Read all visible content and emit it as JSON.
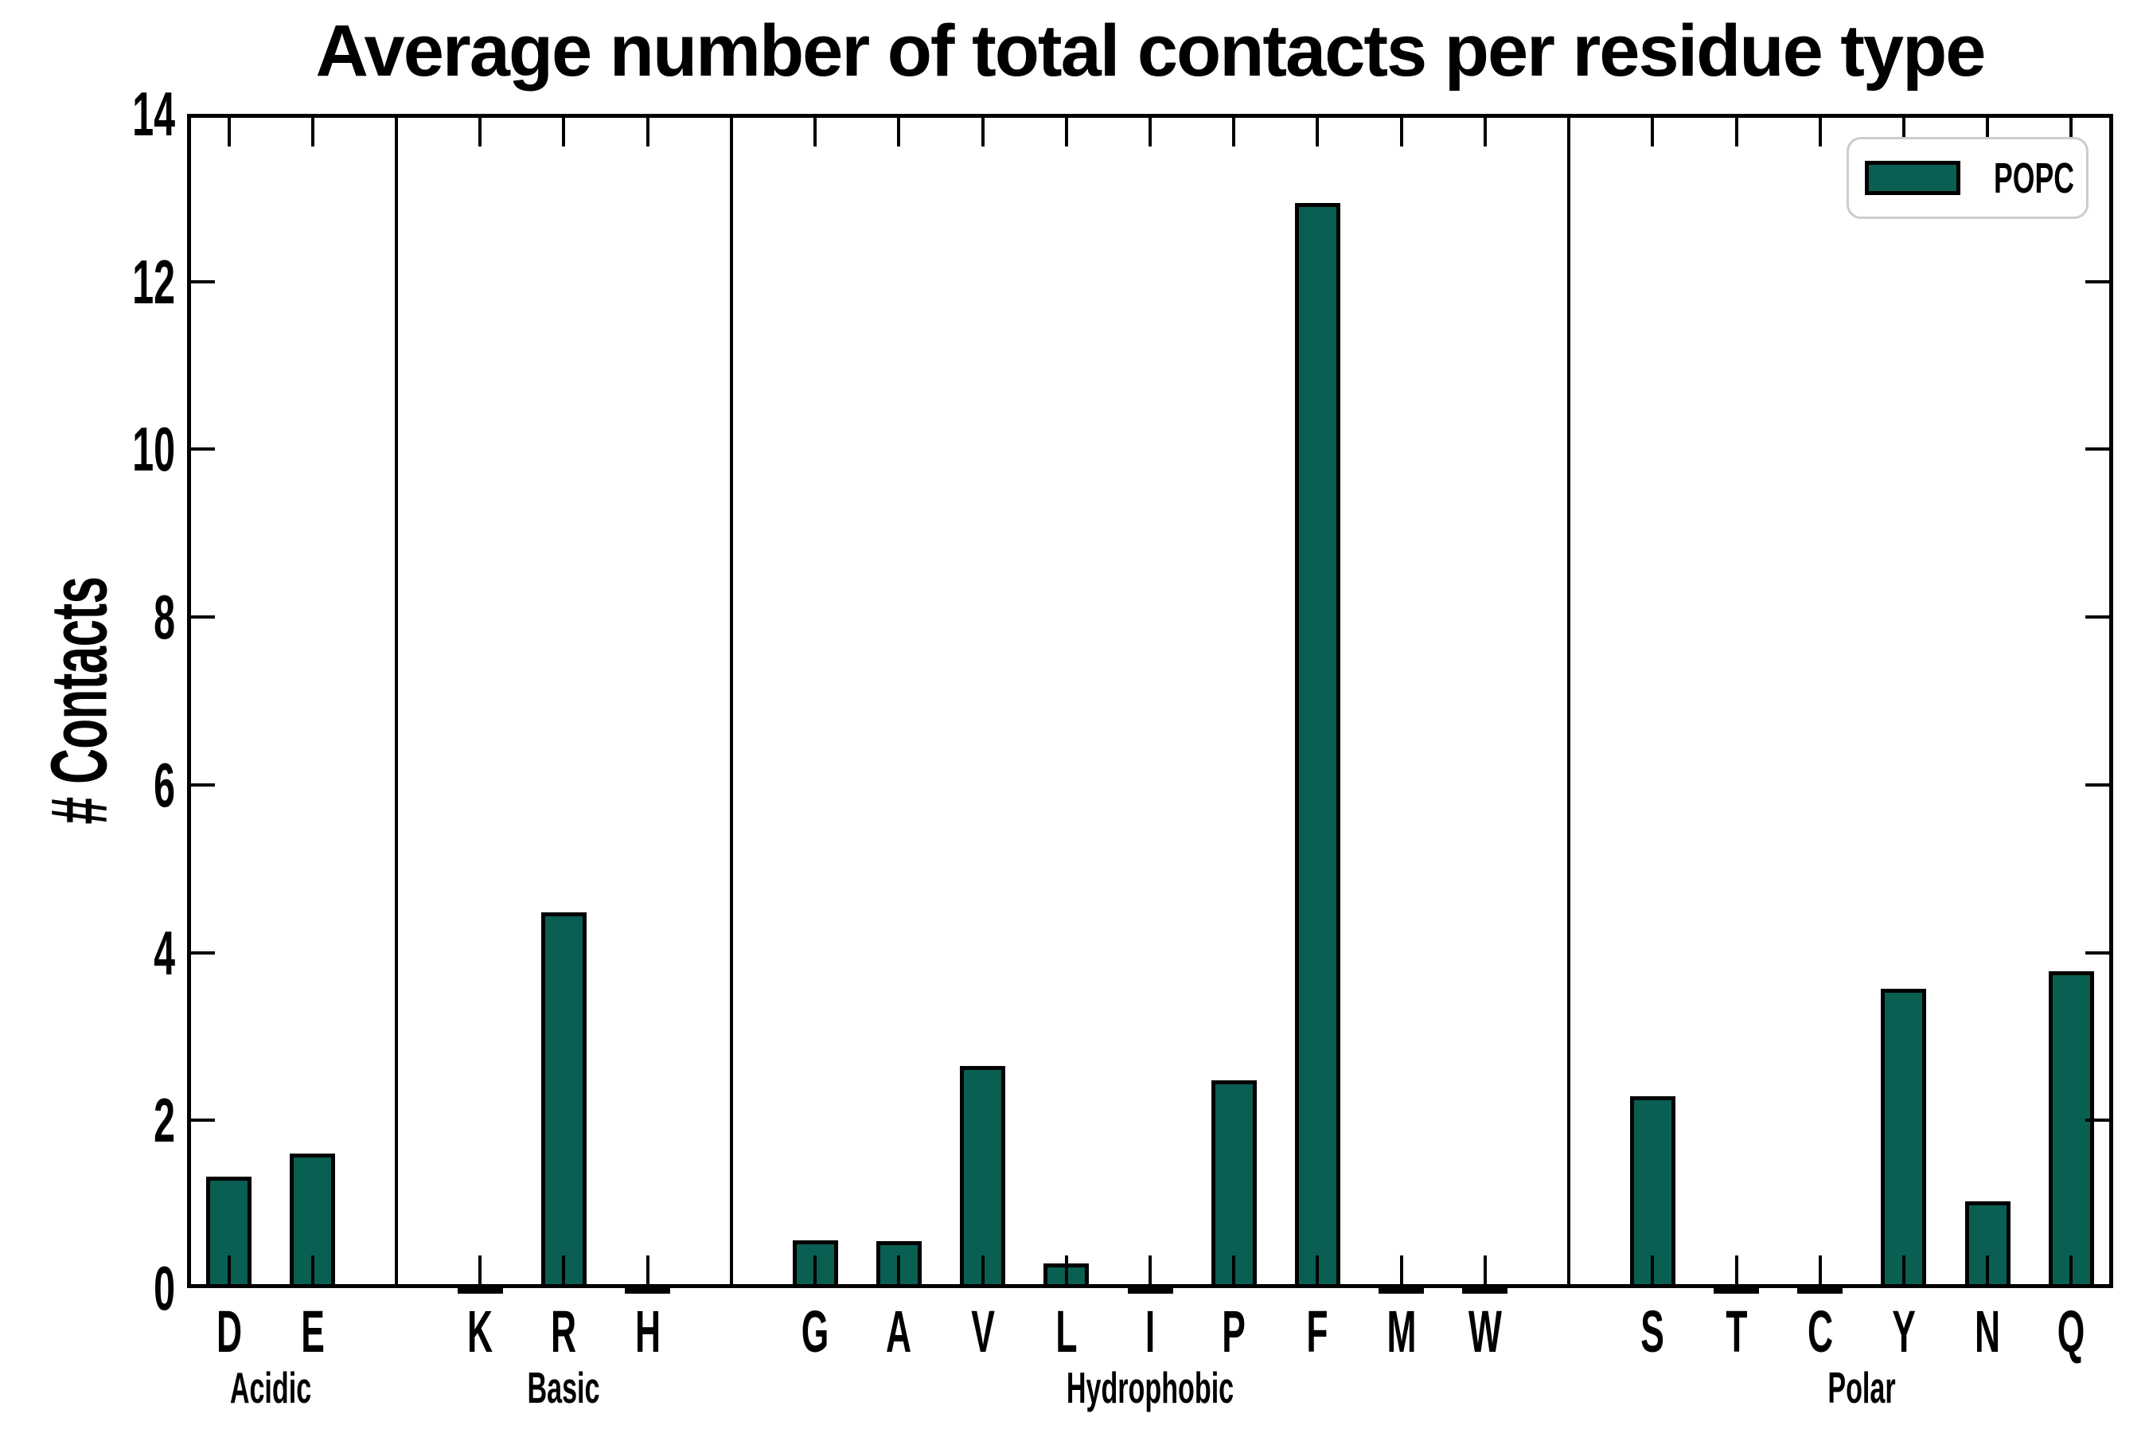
{
  "title": "Average number of total contacts per residue type",
  "ylabel": "# Contacts",
  "legend": {
    "label": "POPC"
  },
  "colors": {
    "bar_fill": "#085f52",
    "bar_edge": "#000000",
    "axis": "#000000",
    "legend_border": "#cccccc",
    "background": "#ffffff"
  },
  "chart_data": {
    "type": "bar",
    "title": "Average number of total contacts per residue type",
    "xlabel": "",
    "ylabel": "# Contacts",
    "ylim": [
      0,
      14
    ],
    "yticks": [
      0,
      2,
      4,
      6,
      8,
      10,
      12,
      14
    ],
    "grid": false,
    "legend_position": "upper right",
    "legend_entries": [
      "POPC"
    ],
    "series": [
      {
        "name": "POPC",
        "color": "#085f52"
      }
    ],
    "groups": [
      {
        "label": "Acidic",
        "categories": [
          "D",
          "E"
        ],
        "values": [
          1.33,
          1.6
        ]
      },
      {
        "label": "Basic",
        "categories": [
          "K",
          "R",
          "H"
        ],
        "values": [
          0.03,
          4.48,
          0.03
        ]
      },
      {
        "label": "Hydrophobic",
        "categories": [
          "G",
          "A",
          "V",
          "L",
          "I",
          "P",
          "F",
          "M",
          "W"
        ],
        "values": [
          0.57,
          0.56,
          2.65,
          0.29,
          0.03,
          2.48,
          12.94,
          0.03,
          0.03
        ]
      },
      {
        "label": "Polar",
        "categories": [
          "S",
          "T",
          "C",
          "Y",
          "N",
          "Q"
        ],
        "values": [
          2.29,
          0.03,
          0.03,
          3.57,
          1.03,
          3.78
        ]
      }
    ]
  }
}
